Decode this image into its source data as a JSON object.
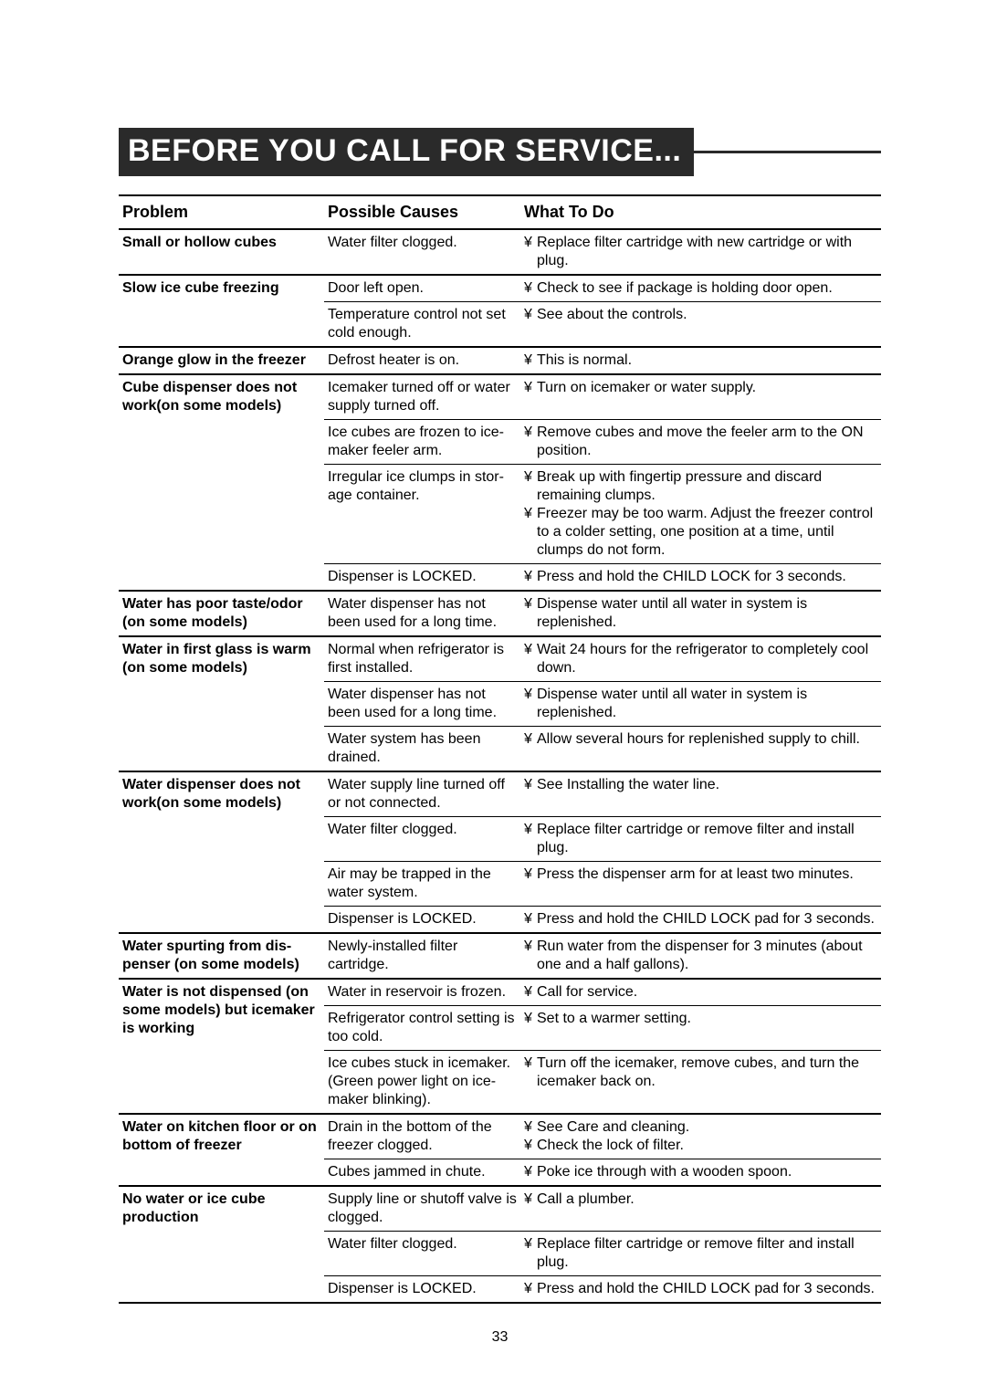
{
  "title": "BEFORE YOU CALL FOR SERVICE...",
  "page_number": "33",
  "headers": {
    "problem": "Problem",
    "cause": "Possible Causes",
    "what": "What To Do"
  },
  "rows": [
    {
      "problem": "Small or hollow cubes",
      "cause": "Water filter clogged.",
      "actions": [
        "Replace filter cartridge with new cartridge or with plug."
      ],
      "group_end": true
    },
    {
      "problem": "Slow ice cube freezing",
      "cause": "Door left open.",
      "actions": [
        "Check to see if package is holding door open."
      ]
    },
    {
      "problem": "",
      "cause": "Temperature control not set cold enough.",
      "actions": [
        "See about the controls."
      ],
      "group_end": true
    },
    {
      "problem": "Orange glow in the freezer",
      "cause": "Defrost heater is on.",
      "actions": [
        "This is normal."
      ],
      "group_end": true
    },
    {
      "problem": "Cube dispenser does not work(on some models)",
      "cause": "Icemaker turned off or water supply turned off.",
      "actions": [
        "Turn on icemaker or water supply."
      ]
    },
    {
      "problem": "",
      "cause": "Ice cubes are frozen to ice-maker feeler arm.",
      "actions": [
        "Remove cubes and move the feeler arm to the ON position."
      ]
    },
    {
      "problem": "",
      "cause": "Irregular ice clumps in stor-age container.",
      "actions": [
        "Break up with fingertip pressure and discard remaining clumps.",
        "Freezer may be too warm. Adjust the freezer control to a colder setting, one position at a time, until clumps do not form."
      ]
    },
    {
      "problem": "",
      "cause": "Dispenser is LOCKED.",
      "actions": [
        "Press and hold the CHILD LOCK for 3 seconds."
      ],
      "group_end": true
    },
    {
      "problem": "Water has poor taste/odor (on some models)",
      "cause": "Water dispenser has not been used for a long time.",
      "actions": [
        "Dispense water until all water in system is replenished."
      ],
      "group_end": true
    },
    {
      "problem": "Water in first glass is warm (on some models)",
      "cause": "Normal when refrigerator is first installed.",
      "actions": [
        "Wait 24 hours for the refrigerator to completely cool down."
      ]
    },
    {
      "problem": "",
      "cause": "Water dispenser has not been used for a long time.",
      "actions": [
        "Dispense water until all water in system is replenished."
      ]
    },
    {
      "problem": "",
      "cause": "Water system has been drained.",
      "actions": [
        "Allow several hours for replenished supply to chill."
      ],
      "group_end": true
    },
    {
      "problem": "Water dispenser does not work(on some models)",
      "cause": "Water supply line turned off or not connected.",
      "actions": [
        "See Installing the water line."
      ]
    },
    {
      "problem": "",
      "cause": "Water filter clogged.",
      "actions": [
        "Replace filter cartridge or remove filter and install plug."
      ]
    },
    {
      "problem": "",
      "cause": "Air may be trapped in the water system.",
      "actions": [
        "Press the dispenser arm for at least two minutes."
      ]
    },
    {
      "problem": "",
      "cause": "Dispenser is LOCKED.",
      "actions": [
        "Press and hold the CHILD LOCK pad for 3 seconds."
      ],
      "group_end": true
    },
    {
      "problem": "Water spurting from dis-penser (on some models)",
      "cause": "Newly-installed filter cartridge.",
      "actions": [
        "Run water from the dispenser for 3 minutes (about one and a half gallons)."
      ],
      "group_end": true
    },
    {
      "problem": "Water is not dispensed (on some models) but icemaker is working",
      "cause": "Water in reservoir is frozen.",
      "actions": [
        "Call for service."
      ]
    },
    {
      "problem": "",
      "cause": "Refrigerator control setting is too cold.",
      "actions": [
        "Set to a warmer setting."
      ]
    },
    {
      "problem": "",
      "cause": "Ice cubes stuck in icemaker. (Green power light on ice-maker blinking).",
      "actions": [
        "Turn off the icemaker, remove cubes, and turn the icemaker back on."
      ],
      "group_end": true
    },
    {
      "problem": "Water on kitchen floor or on bottom of freezer",
      "cause": "Drain in the bottom of the freezer clogged.",
      "actions": [
        "See  Care and cleaning.",
        "Check the lock of filter."
      ]
    },
    {
      "problem": "",
      "cause": "Cubes jammed in chute.",
      "actions": [
        "Poke ice through with a wooden spoon."
      ],
      "group_end": true
    },
    {
      "problem": "No water or ice cube production",
      "cause": "Supply line or shutoff valve is clogged.",
      "actions": [
        "Call a plumber."
      ]
    },
    {
      "problem": "",
      "cause": "Water filter clogged.",
      "actions": [
        "Replace filter cartridge or remove filter and install plug."
      ]
    },
    {
      "problem": "",
      "cause": "Dispenser is LOCKED.",
      "actions": [
        "Press and hold the CHILD LOCK pad for 3 seconds."
      ],
      "group_end": true,
      "last_row": true
    }
  ]
}
